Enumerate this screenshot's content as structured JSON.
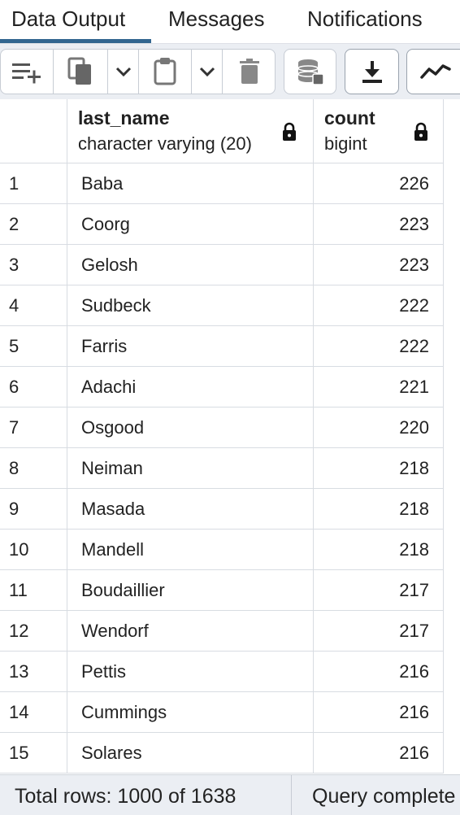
{
  "tabs": [
    {
      "label": "Data Output"
    },
    {
      "label": "Messages"
    },
    {
      "label": "Notifications"
    }
  ],
  "toolbar": {
    "icons": [
      "add-row-icon",
      "copy-icon",
      "chevron-down-icon",
      "paste-icon",
      "chevron-down-icon",
      "delete-icon",
      "save-data-icon",
      "download-icon",
      "graph-icon"
    ]
  },
  "columns": [
    {
      "name": "last_name",
      "type": "character varying (20)"
    },
    {
      "name": "count",
      "type": "bigint"
    }
  ],
  "rows": [
    {
      "num": "1",
      "last_name": "Baba",
      "count": "226"
    },
    {
      "num": "2",
      "last_name": "Coorg",
      "count": "223"
    },
    {
      "num": "3",
      "last_name": "Gelosh",
      "count": "223"
    },
    {
      "num": "4",
      "last_name": "Sudbeck",
      "count": "222"
    },
    {
      "num": "5",
      "last_name": "Farris",
      "count": "222"
    },
    {
      "num": "6",
      "last_name": "Adachi",
      "count": "221"
    },
    {
      "num": "7",
      "last_name": "Osgood",
      "count": "220"
    },
    {
      "num": "8",
      "last_name": "Neiman",
      "count": "218"
    },
    {
      "num": "9",
      "last_name": "Masada",
      "count": "218"
    },
    {
      "num": "10",
      "last_name": "Mandell",
      "count": "218"
    },
    {
      "num": "11",
      "last_name": "Boudaillier",
      "count": "217"
    },
    {
      "num": "12",
      "last_name": "Wendorf",
      "count": "217"
    },
    {
      "num": "13",
      "last_name": "Pettis",
      "count": "216"
    },
    {
      "num": "14",
      "last_name": "Cummings",
      "count": "216"
    },
    {
      "num": "15",
      "last_name": "Solares",
      "count": "216"
    }
  ],
  "status": {
    "total_rows": "Total rows: 1000 of 1638",
    "query": "Query complete"
  },
  "colors": {
    "accent": "#326690",
    "toolbar_bg": "#ebeef3",
    "border": "#d8dce2"
  }
}
